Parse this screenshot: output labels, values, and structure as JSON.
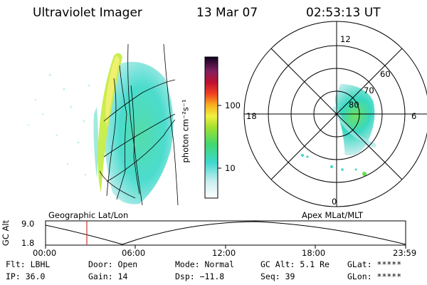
{
  "header": {
    "instrument": "Ultraviolet Imager",
    "date": "13 Mar 07",
    "time": "02:53:13 UT"
  },
  "colorbar": {
    "unit_label": "photon cm⁻²s⁻¹",
    "ticks": [
      "100",
      "10"
    ]
  },
  "polar_plot": {
    "mlt_labels": {
      "top": "12",
      "right": "6",
      "bottom": "0",
      "left": "18"
    },
    "mlat_labels": [
      "60",
      "70",
      "80"
    ]
  },
  "panel_labels": {
    "left": "Geographic Lat/Lon",
    "right": "Apex MLat/MLT"
  },
  "altitude_plot": {
    "ylabel": "GC Alt",
    "yticks": [
      "9.0",
      "1.8"
    ],
    "xticks": [
      "00:00",
      "06:00",
      "12:00",
      "18:00",
      "23:59"
    ]
  },
  "status": {
    "flt": "Flt: LBHL",
    "ip": "IP: 36.0",
    "door": "Door: Open",
    "gain": "Gain: 14",
    "mode": "Mode: Normal",
    "dsp": "Dsp:  −11.8",
    "gc_alt": "GC Alt: 5.1 Re",
    "seq": "Seq: 39",
    "glat": "GLat: *****",
    "glon": "GLon: *****"
  },
  "colors": {
    "aurora_low": "#30d8c8",
    "aurora_mid": "#70e060",
    "aurora_high": "#e8f040",
    "marker": "#d03030"
  }
}
